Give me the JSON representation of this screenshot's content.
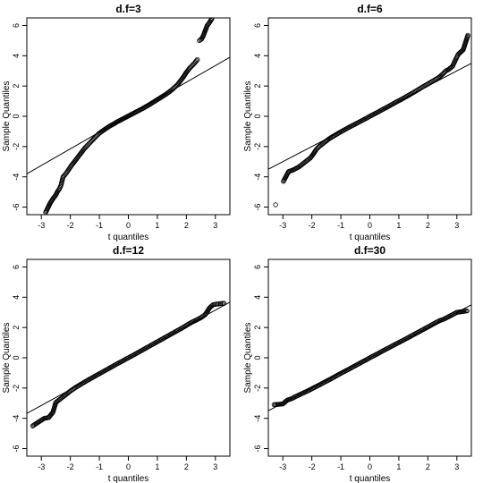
{
  "chart_data": [
    {
      "type": "scatter",
      "title": "d.f=3",
      "xlabel": "t quantiles",
      "ylabel": "Sample Quantiles",
      "xlim": [
        -3.5,
        3.5
      ],
      "ylim": [
        -6.5,
        6.5
      ],
      "xticks": [
        "-3",
        "-2",
        "-1",
        "0",
        "1",
        "2",
        "3"
      ],
      "yticks": [
        "-6",
        "-4",
        "-2",
        "0",
        "2",
        "4",
        "6"
      ],
      "grid": false,
      "reference_line": {
        "slope": 1.1,
        "intercept": 0.05
      },
      "points": [
        [
          -2.85,
          -6.35
        ],
        [
          -2.7,
          -5.75
        ],
        [
          -2.6,
          -5.45
        ],
        [
          -2.5,
          -5.2
        ],
        [
          -2.45,
          -5.0
        ],
        [
          -2.38,
          -4.8
        ],
        [
          -2.32,
          -4.55
        ],
        [
          -2.25,
          -4.0
        ],
        [
          -2.18,
          -3.85
        ],
        [
          -2.12,
          -3.7
        ],
        [
          -2.05,
          -3.5
        ],
        [
          -1.98,
          -3.3
        ],
        [
          -1.9,
          -3.1
        ],
        [
          -1.8,
          -2.85
        ],
        [
          -1.7,
          -2.6
        ],
        [
          -1.6,
          -2.35
        ],
        [
          -1.5,
          -2.1
        ],
        [
          -1.4,
          -1.9
        ],
        [
          -1.3,
          -1.7
        ],
        [
          -1.2,
          -1.5
        ],
        [
          -1.1,
          -1.3
        ],
        [
          -1.0,
          -1.12
        ],
        [
          -0.9,
          -0.98
        ],
        [
          -0.8,
          -0.85
        ],
        [
          -0.7,
          -0.72
        ],
        [
          -0.6,
          -0.6
        ],
        [
          -0.5,
          -0.5
        ],
        [
          -0.4,
          -0.38
        ],
        [
          -0.3,
          -0.28
        ],
        [
          -0.2,
          -0.18
        ],
        [
          -0.1,
          -0.08
        ],
        [
          0.0,
          0.02
        ],
        [
          0.1,
          0.12
        ],
        [
          0.2,
          0.22
        ],
        [
          0.3,
          0.32
        ],
        [
          0.4,
          0.42
        ],
        [
          0.5,
          0.52
        ],
        [
          0.6,
          0.63
        ],
        [
          0.7,
          0.74
        ],
        [
          0.8,
          0.86
        ],
        [
          0.9,
          0.98
        ],
        [
          1.0,
          1.1
        ],
        [
          1.1,
          1.22
        ],
        [
          1.2,
          1.34
        ],
        [
          1.3,
          1.46
        ],
        [
          1.4,
          1.6
        ],
        [
          1.5,
          1.75
        ],
        [
          1.6,
          1.92
        ],
        [
          1.7,
          2.1
        ],
        [
          1.8,
          2.35
        ],
        [
          1.9,
          2.6
        ],
        [
          2.0,
          2.9
        ],
        [
          2.1,
          3.15
        ],
        [
          2.2,
          3.35
        ],
        [
          2.3,
          3.55
        ],
        [
          2.38,
          3.75
        ],
        [
          2.45,
          5.0
        ],
        [
          2.52,
          5.1
        ],
        [
          2.58,
          5.3
        ],
        [
          2.72,
          6.0
        ],
        [
          2.8,
          6.2
        ],
        [
          2.88,
          6.45
        ]
      ]
    },
    {
      "type": "scatter",
      "title": "d.f=6",
      "xlabel": "t quantiles",
      "ylabel": "Sample Quantiles",
      "xlim": [
        -3.5,
        3.5
      ],
      "ylim": [
        -6.5,
        6.5
      ],
      "xticks": [
        "-3",
        "-2",
        "-1",
        "0",
        "1",
        "2",
        "3"
      ],
      "yticks": [
        "-6",
        "-4",
        "-2",
        "0",
        "2",
        "4",
        "6"
      ],
      "grid": false,
      "reference_line": {
        "slope": 1.0,
        "intercept": 0.0
      },
      "points": [
        [
          -3.25,
          -5.85
        ],
        [
          -2.98,
          -4.3
        ],
        [
          -2.8,
          -3.65
        ],
        [
          -2.65,
          -3.55
        ],
        [
          -2.55,
          -3.45
        ],
        [
          -2.45,
          -3.35
        ],
        [
          -2.35,
          -3.2
        ],
        [
          -2.25,
          -3.05
        ],
        [
          -2.15,
          -2.9
        ],
        [
          -2.05,
          -2.75
        ],
        [
          -1.95,
          -2.5
        ],
        [
          -1.85,
          -2.2
        ],
        [
          -1.75,
          -2.0
        ],
        [
          -1.65,
          -1.85
        ],
        [
          -1.55,
          -1.7
        ],
        [
          -1.45,
          -1.55
        ],
        [
          -1.35,
          -1.42
        ],
        [
          -1.2,
          -1.25
        ],
        [
          -1.05,
          -1.08
        ],
        [
          -0.9,
          -0.92
        ],
        [
          -0.75,
          -0.76
        ],
        [
          -0.6,
          -0.61
        ],
        [
          -0.45,
          -0.46
        ],
        [
          -0.3,
          -0.31
        ],
        [
          -0.15,
          -0.16
        ],
        [
          0.0,
          0.0
        ],
        [
          0.15,
          0.15
        ],
        [
          0.3,
          0.3
        ],
        [
          0.45,
          0.46
        ],
        [
          0.6,
          0.61
        ],
        [
          0.75,
          0.77
        ],
        [
          0.9,
          0.93
        ],
        [
          1.05,
          1.08
        ],
        [
          1.2,
          1.24
        ],
        [
          1.35,
          1.4
        ],
        [
          1.5,
          1.57
        ],
        [
          1.65,
          1.74
        ],
        [
          1.8,
          1.92
        ],
        [
          1.95,
          2.08
        ],
        [
          2.1,
          2.25
        ],
        [
          2.25,
          2.42
        ],
        [
          2.4,
          2.6
        ],
        [
          2.52,
          2.8
        ],
        [
          2.62,
          3.0
        ],
        [
          2.72,
          3.1
        ],
        [
          2.85,
          3.3
        ],
        [
          2.97,
          3.8
        ],
        [
          3.05,
          4.1
        ],
        [
          3.22,
          4.4
        ],
        [
          3.38,
          5.35
        ]
      ]
    },
    {
      "type": "scatter",
      "title": "d.f=12",
      "xlabel": "t quantiles",
      "ylabel": "Sample Quantiles",
      "xlim": [
        -3.5,
        3.5
      ],
      "ylim": [
        -6.5,
        6.5
      ],
      "xticks": [
        "-3",
        "-2",
        "-1",
        "0",
        "1",
        "2",
        "3"
      ],
      "yticks": [
        "-6",
        "-4",
        "-2",
        "0",
        "2",
        "4",
        "6"
      ],
      "grid": false,
      "reference_line": {
        "slope": 1.05,
        "intercept": 0.0
      },
      "points": [
        [
          -3.3,
          -4.5
        ],
        [
          -2.9,
          -4.0
        ],
        [
          -2.75,
          -3.95
        ],
        [
          -2.6,
          -3.6
        ],
        [
          -2.5,
          -2.95
        ],
        [
          -2.4,
          -2.8
        ],
        [
          -2.3,
          -2.65
        ],
        [
          -2.2,
          -2.5
        ],
        [
          -2.1,
          -2.35
        ],
        [
          -2.0,
          -2.2
        ],
        [
          -1.85,
          -2.0
        ],
        [
          -1.7,
          -1.82
        ],
        [
          -1.55,
          -1.65
        ],
        [
          -1.4,
          -1.48
        ],
        [
          -1.25,
          -1.32
        ],
        [
          -1.1,
          -1.16
        ],
        [
          -0.95,
          -1.0
        ],
        [
          -0.8,
          -0.84
        ],
        [
          -0.65,
          -0.68
        ],
        [
          -0.5,
          -0.52
        ],
        [
          -0.35,
          -0.36
        ],
        [
          -0.2,
          -0.21
        ],
        [
          -0.05,
          -0.05
        ],
        [
          0.1,
          0.1
        ],
        [
          0.25,
          0.26
        ],
        [
          0.4,
          0.42
        ],
        [
          0.55,
          0.58
        ],
        [
          0.7,
          0.74
        ],
        [
          0.85,
          0.9
        ],
        [
          1.0,
          1.06
        ],
        [
          1.15,
          1.22
        ],
        [
          1.3,
          1.38
        ],
        [
          1.45,
          1.54
        ],
        [
          1.6,
          1.7
        ],
        [
          1.75,
          1.86
        ],
        [
          1.9,
          2.02
        ],
        [
          2.05,
          2.2
        ],
        [
          2.2,
          2.36
        ],
        [
          2.35,
          2.5
        ],
        [
          2.5,
          2.65
        ],
        [
          2.65,
          2.85
        ],
        [
          2.8,
          3.3
        ],
        [
          2.92,
          3.5
        ],
        [
          3.05,
          3.55
        ],
        [
          3.3,
          3.6
        ]
      ]
    },
    {
      "type": "scatter",
      "title": "d.f=30",
      "xlabel": "t quantiles",
      "ylabel": "Sample Quantiles",
      "xlim": [
        -3.5,
        3.5
      ],
      "ylim": [
        -6.5,
        6.5
      ],
      "xticks": [
        "-3",
        "-2",
        "-1",
        "0",
        "1",
        "2",
        "3"
      ],
      "yticks": [
        "-6",
        "-4",
        "-2",
        "0",
        "2",
        "4",
        "6"
      ],
      "grid": false,
      "reference_line": {
        "slope": 1.0,
        "intercept": 0.0
      },
      "points": [
        [
          -3.3,
          -3.1
        ],
        [
          -3.0,
          -3.05
        ],
        [
          -2.85,
          -2.8
        ],
        [
          -2.7,
          -2.7
        ],
        [
          -2.55,
          -2.55
        ],
        [
          -2.4,
          -2.42
        ],
        [
          -2.25,
          -2.28
        ],
        [
          -2.1,
          -2.15
        ],
        [
          -1.95,
          -2.0
        ],
        [
          -1.8,
          -1.85
        ],
        [
          -1.65,
          -1.7
        ],
        [
          -1.5,
          -1.55
        ],
        [
          -1.35,
          -1.4
        ],
        [
          -1.2,
          -1.24
        ],
        [
          -1.05,
          -1.08
        ],
        [
          -0.9,
          -0.93
        ],
        [
          -0.75,
          -0.78
        ],
        [
          -0.6,
          -0.62
        ],
        [
          -0.45,
          -0.47
        ],
        [
          -0.3,
          -0.31
        ],
        [
          -0.15,
          -0.16
        ],
        [
          0.0,
          0.0
        ],
        [
          0.15,
          0.15
        ],
        [
          0.3,
          0.3
        ],
        [
          0.45,
          0.46
        ],
        [
          0.6,
          0.61
        ],
        [
          0.75,
          0.76
        ],
        [
          0.9,
          0.91
        ],
        [
          1.05,
          1.06
        ],
        [
          1.2,
          1.21
        ],
        [
          1.35,
          1.36
        ],
        [
          1.5,
          1.52
        ],
        [
          1.65,
          1.67
        ],
        [
          1.8,
          1.83
        ],
        [
          1.95,
          1.98
        ],
        [
          2.1,
          2.14
        ],
        [
          2.25,
          2.3
        ],
        [
          2.4,
          2.45
        ],
        [
          2.55,
          2.55
        ],
        [
          2.7,
          2.7
        ],
        [
          2.85,
          2.85
        ],
        [
          3.0,
          3.0
        ],
        [
          3.35,
          3.1
        ]
      ]
    }
  ]
}
